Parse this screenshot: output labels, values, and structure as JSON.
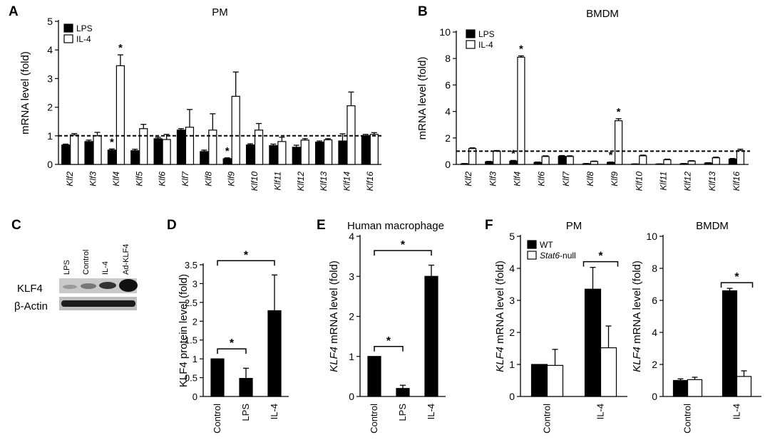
{
  "colors": {
    "filled": "#000000",
    "open": "#ffffff",
    "band_bg": "#c9c9c9",
    "band_dark": "#1c1c1c"
  },
  "panel_c": {
    "label": "C",
    "lanes": [
      "LPS",
      "Control",
      "IL-4",
      "Ad-KLF4"
    ],
    "rows": [
      "KLF4",
      "β-Actin"
    ]
  },
  "chart_data": [
    {
      "panel": "A",
      "type": "bar",
      "title": "PM",
      "ylabel": "mRNA level (fold)",
      "ylim": [
        0,
        5
      ],
      "yticks": [
        0,
        1,
        2,
        3,
        4,
        5
      ],
      "categories": [
        "Klf2",
        "Klf3",
        "Klf4",
        "Klf5",
        "Klf6",
        "Klf7",
        "Klf8",
        "Klf9",
        "Klf10",
        "Klf11",
        "Klf12",
        "Klf13",
        "Klf14",
        "Klf16"
      ],
      "series": [
        {
          "name": "LPS",
          "fill": "filled",
          "values": [
            0.68,
            0.8,
            0.5,
            0.48,
            0.9,
            1.2,
            0.45,
            0.2,
            0.68,
            0.66,
            0.6,
            0.78,
            0.82,
            1.0
          ],
          "errors": [
            0.03,
            0.05,
            0.04,
            0.05,
            0.05,
            0.05,
            0.05,
            0.03,
            0.04,
            0.05,
            0.07,
            0.04,
            0.25,
            0.05
          ]
        },
        {
          "name": "IL-4",
          "fill": "open",
          "values": [
            1.03,
            1.0,
            3.45,
            1.25,
            0.87,
            1.3,
            1.2,
            2.38,
            1.2,
            0.8,
            0.85,
            0.86,
            2.05,
            1.05
          ],
          "errors": [
            0.05,
            0.12,
            0.38,
            0.15,
            0.18,
            0.62,
            0.57,
            0.85,
            0.23,
            0.15,
            0.05,
            0.04,
            0.48,
            0.06
          ]
        }
      ],
      "reference_line": 1,
      "significance": [
        "Klf4 LPS",
        "Klf4 IL-4",
        "Klf9 LPS"
      ],
      "star": "*"
    },
    {
      "panel": "B",
      "type": "bar",
      "title": "BMDM",
      "ylabel": "mRNA level (fold)",
      "ylim": [
        0,
        10
      ],
      "yticks": [
        0,
        2,
        4,
        6,
        8,
        10
      ],
      "categories": [
        "Klf2",
        "Klf3",
        "Klf4",
        "Klf6",
        "Klf7",
        "Klf8",
        "Klf9",
        "Klf10",
        "Klf11",
        "Klf12",
        "Klf13",
        "Klf16"
      ],
      "series": [
        {
          "name": "LPS",
          "fill": "filled",
          "values": [
            0.05,
            0.2,
            0.25,
            0.15,
            0.62,
            0.05,
            0.15,
            0.03,
            0.03,
            0.05,
            0.1,
            0.4
          ],
          "errors": [
            0.02,
            0.03,
            0.05,
            0.03,
            0.05,
            0.02,
            0.03,
            0.01,
            0.01,
            0.02,
            0.03,
            0.05
          ]
        },
        {
          "name": "IL-4",
          "fill": "open",
          "values": [
            1.2,
            1.0,
            8.1,
            0.6,
            0.6,
            0.22,
            3.3,
            0.65,
            0.35,
            0.25,
            0.5,
            1.05
          ],
          "errors": [
            0.05,
            0.05,
            0.1,
            0.05,
            0.05,
            0.03,
            0.15,
            0.05,
            0.05,
            0.03,
            0.05,
            0.1
          ]
        }
      ],
      "reference_line": 1,
      "significance": [
        "Klf4 LPS",
        "Klf4 IL-4",
        "Klf9 LPS",
        "Klf9 IL-4"
      ],
      "star": "*"
    },
    {
      "panel": "D",
      "type": "bar",
      "title": "",
      "ylabel": "KLF4 protein level (fold)",
      "ylim": [
        0,
        3.5
      ],
      "yticks": [
        0,
        0.5,
        1,
        1.5,
        2,
        2.5,
        3,
        3.5
      ],
      "categories": [
        "Control",
        "LPS",
        "IL-4"
      ],
      "series": [
        {
          "name": "",
          "fill": "filled",
          "values": [
            1.0,
            0.48,
            2.28
          ],
          "errors": [
            0,
            0.27,
            0.95
          ]
        }
      ],
      "brackets": [
        {
          "from": "Control",
          "to": "LPS",
          "label": "*"
        },
        {
          "from": "Control",
          "to": "IL-4",
          "label": "*"
        }
      ]
    },
    {
      "panel": "E",
      "type": "bar",
      "title": "Human macrophage",
      "ylabel_italic": "KLF4",
      "ylabel": " mRNA level (fold)",
      "ylim": [
        0,
        4
      ],
      "yticks": [
        0,
        1,
        2,
        3,
        4
      ],
      "categories": [
        "Control",
        "LPS",
        "IL-4"
      ],
      "series": [
        {
          "name": "",
          "fill": "filled",
          "values": [
            1.0,
            0.2,
            3.0
          ],
          "errors": [
            0,
            0.08,
            0.28
          ]
        }
      ],
      "brackets": [
        {
          "from": "Control",
          "to": "LPS",
          "label": "*"
        },
        {
          "from": "Control",
          "to": "IL-4",
          "label": "*"
        }
      ]
    },
    {
      "panel": "F",
      "type": "bar",
      "title": "PM",
      "ylabel_italic": "KLF4",
      "ylabel": " mRNA level (fold)",
      "ylim": [
        0,
        5
      ],
      "yticks": [
        0,
        1,
        2,
        3,
        4,
        5
      ],
      "categories": [
        "Control",
        "IL-4"
      ],
      "series": [
        {
          "name": "WT",
          "fill": "filled",
          "values": [
            1.0,
            3.35
          ],
          "errors": [
            0,
            0.68
          ]
        },
        {
          "name": "Stat6-null",
          "name_italic": "Stat6",
          "name_rest": "-null",
          "fill": "open",
          "values": [
            0.97,
            1.52
          ],
          "errors": [
            0.5,
            0.68
          ]
        }
      ],
      "brackets": [
        {
          "group": "IL-4",
          "label": "*"
        }
      ]
    },
    {
      "panel": "",
      "type": "bar",
      "title": "BMDM",
      "ylabel_italic": "KLF4",
      "ylabel": " mRNA level (fold)",
      "ylim": [
        0,
        10
      ],
      "yticks": [
        0,
        2,
        4,
        6,
        8,
        10
      ],
      "categories": [
        "Control",
        "IL-4"
      ],
      "series": [
        {
          "name": "WT",
          "fill": "filled",
          "values": [
            1.0,
            6.6
          ],
          "errors": [
            0.1,
            0.15
          ]
        },
        {
          "name": "Stat6-null",
          "fill": "open",
          "values": [
            1.05,
            1.25
          ],
          "errors": [
            0.15,
            0.35
          ]
        }
      ],
      "brackets": [
        {
          "group": "IL-4",
          "label": "*"
        }
      ]
    }
  ]
}
